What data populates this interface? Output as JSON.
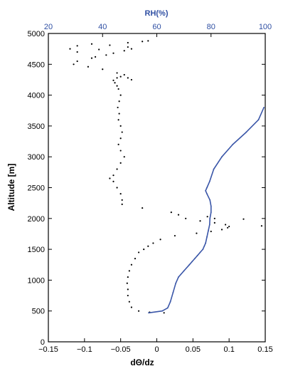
{
  "chart_data": {
    "type": "line",
    "title": "",
    "xlabel": "dΘ/dz",
    "ylabel": "Altitude [m]",
    "top_axis_label": "RH(%)",
    "xlim": [
      -0.15,
      0.15
    ],
    "x_ticks": [
      "−0.15",
      "−0.1",
      "−0.05",
      "0",
      "0.05",
      "0.1",
      "0.15"
    ],
    "x_tick_values": [
      -0.15,
      -0.1,
      -0.05,
      0,
      0.05,
      0.1,
      0.15
    ],
    "top_xlim": [
      20,
      100
    ],
    "top_ticks": [
      "20",
      "40",
      "60",
      "80",
      "100"
    ],
    "top_tick_values": [
      20,
      40,
      60,
      80,
      100
    ],
    "ylim": [
      0,
      5000
    ],
    "y_ticks": [
      "0",
      "500",
      "1000",
      "1500",
      "2000",
      "2500",
      "3000",
      "3500",
      "4000",
      "4500",
      "5000"
    ],
    "y_tick_values": [
      0,
      500,
      1000,
      1500,
      2000,
      2500,
      3000,
      3500,
      4000,
      4500,
      5000
    ],
    "grid": false,
    "legend": "none",
    "colors": {
      "gradient": "#000000",
      "rh": "#3a56a8",
      "rh_axis": "#2f4fa3"
    },
    "series": [
      {
        "axis": "bottom",
        "style": "dots",
        "x": [
          0.01,
          -0.01,
          -0.025,
          -0.035,
          -0.038,
          -0.04,
          -0.04,
          -0.041,
          -0.04,
          -0.038,
          -0.035,
          -0.03,
          -0.025,
          -0.018,
          -0.012,
          -0.005,
          0.005,
          0.025,
          0.055,
          0.075,
          0.09,
          0.098,
          0.1,
          0.095,
          0.08,
          0.06,
          0.04,
          0.03,
          0.07,
          0.12,
          0.145,
          0.08,
          0.02,
          -0.02,
          -0.048,
          -0.048,
          -0.05,
          -0.055,
          -0.06,
          -0.065,
          -0.06,
          -0.055,
          -0.05,
          -0.045,
          -0.05,
          -0.053,
          -0.05,
          -0.048,
          -0.05,
          -0.053,
          -0.052,
          -0.054,
          -0.052,
          -0.05,
          -0.053,
          -0.055,
          -0.058,
          -0.06,
          -0.055,
          -0.05,
          -0.045,
          -0.04,
          -0.035,
          -0.055,
          -0.075,
          -0.095,
          -0.115,
          -0.11,
          -0.09,
          -0.085,
          -0.07,
          -0.06,
          -0.045,
          -0.035,
          -0.04,
          -0.065,
          -0.09,
          -0.11,
          -0.12,
          -0.11,
          -0.08,
          -0.04,
          -0.02,
          -0.012
        ],
        "y": [
          470,
          480,
          500,
          560,
          650,
          750,
          850,
          950,
          1050,
          1150,
          1250,
          1350,
          1450,
          1500,
          1550,
          1600,
          1660,
          1720,
          1760,
          1790,
          1820,
          1850,
          1870,
          1900,
          1930,
          1960,
          2000,
          2060,
          2030,
          1990,
          1880,
          2000,
          2100,
          2170,
          2230,
          2300,
          2400,
          2500,
          2600,
          2650,
          2700,
          2800,
          2900,
          3000,
          3100,
          3200,
          3300,
          3400,
          3500,
          3600,
          3700,
          3800,
          3900,
          4000,
          4100,
          4150,
          4200,
          4240,
          4280,
          4300,
          4330,
          4280,
          4250,
          4360,
          4420,
          4460,
          4500,
          4550,
          4600,
          4620,
          4650,
          4680,
          4720,
          4750,
          4780,
          4810,
          4830,
          4800,
          4750,
          4700,
          4740,
          4850,
          4870,
          4880
        ]
      },
      {
        "axis": "top",
        "style": "line",
        "x": [
          57,
          62,
          64,
          65,
          66,
          67,
          68,
          70,
          72,
          73,
          74,
          75,
          76,
          77,
          77.5,
          78,
          78.5,
          79,
          79.5,
          79.6,
          80,
          80,
          79.6,
          78.5,
          78,
          78.5,
          79.5,
          81,
          84,
          88,
          93,
          97.5,
          99.5
        ],
        "y": [
          470,
          500,
          550,
          650,
          800,
          950,
          1050,
          1150,
          1250,
          1300,
          1350,
          1400,
          1450,
          1500,
          1550,
          1600,
          1700,
          1800,
          1900,
          2000,
          2100,
          2200,
          2300,
          2400,
          2450,
          2500,
          2600,
          2800,
          3000,
          3200,
          3400,
          3600,
          3800
        ]
      }
    ]
  }
}
